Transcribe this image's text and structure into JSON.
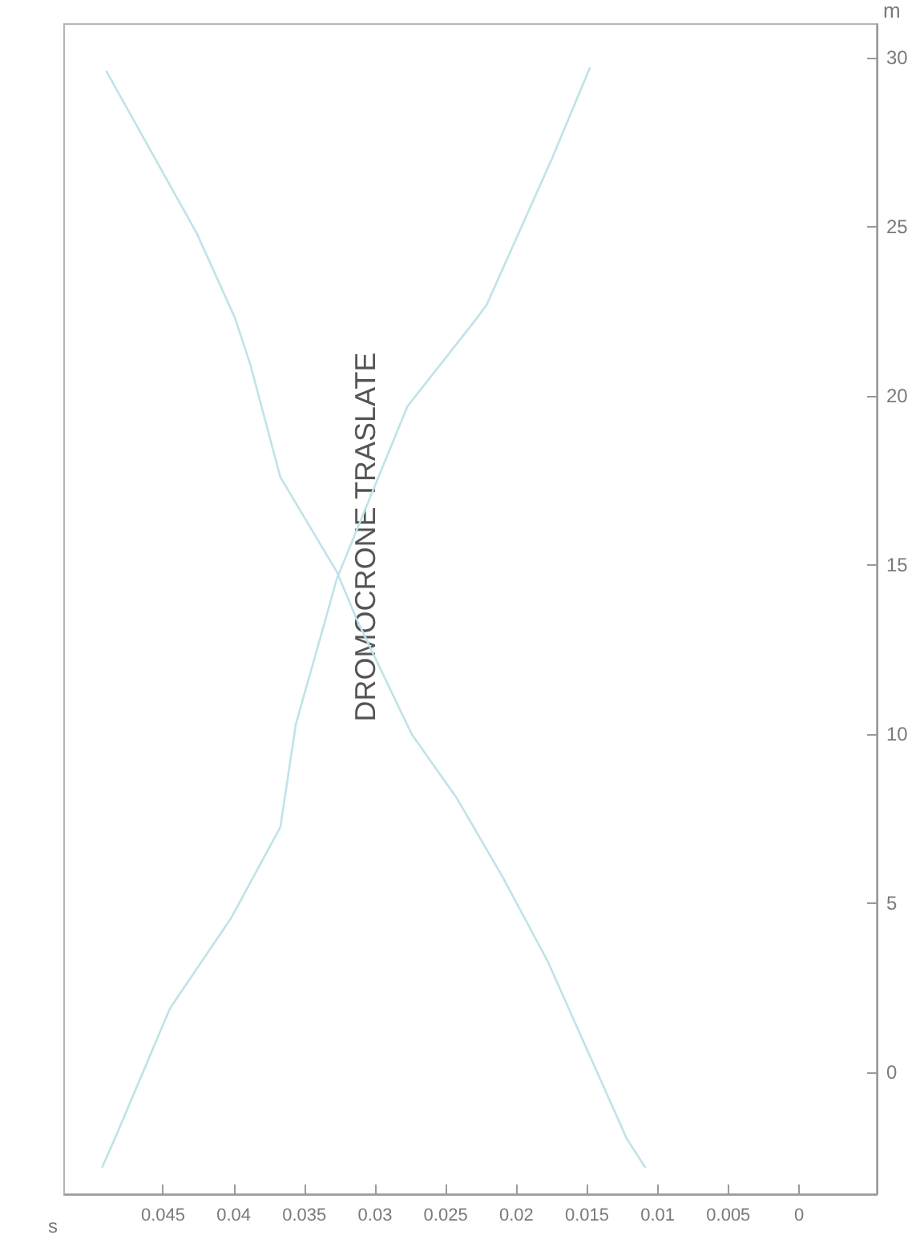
{
  "chart_data": {
    "type": "line",
    "title": "DROMOCRONE TRASLATE",
    "xlabel": "s",
    "ylabel": "m",
    "xlim": [
      0.052,
      -0.0055
    ],
    "ylim": [
      -3.6,
      31
    ],
    "xticks": [
      0,
      0.005,
      0.01,
      0.015,
      0.02,
      0.025,
      0.03,
      0.035,
      0.04,
      0.045
    ],
    "yticks": [
      0,
      5,
      10,
      15,
      20,
      25,
      30
    ],
    "grid": false,
    "marker": "none",
    "line_style": "solid",
    "series": [
      {
        "color": "#bfe3e8",
        "x": [
          0.0493,
          0.0484,
          0.0445,
          0.0402,
          0.0367,
          0.0356,
          0.0335,
          0.0327,
          0.0277,
          0.0228,
          0.0221,
          0.0175,
          0.0148
        ],
        "values": [
          -2.8,
          -1.95,
          1.9,
          4.55,
          7.25,
          10.3,
          13.4,
          14.6,
          19.7,
          22.3,
          22.7,
          27,
          29.7
        ]
      },
      {
        "color": "#bfe3e8",
        "x": [
          0.0109,
          0.0122,
          0.0178,
          0.021,
          0.0242,
          0.0274,
          0.0313,
          0.0327,
          0.0367,
          0.0388,
          0.0399,
          0.0426,
          0.049
        ],
        "values": [
          -2.8,
          -1.95,
          3.3,
          5.8,
          8.1,
          10,
          13.4,
          14.8,
          17.6,
          20.9,
          22.3,
          24.8,
          29.6
        ]
      }
    ]
  }
}
